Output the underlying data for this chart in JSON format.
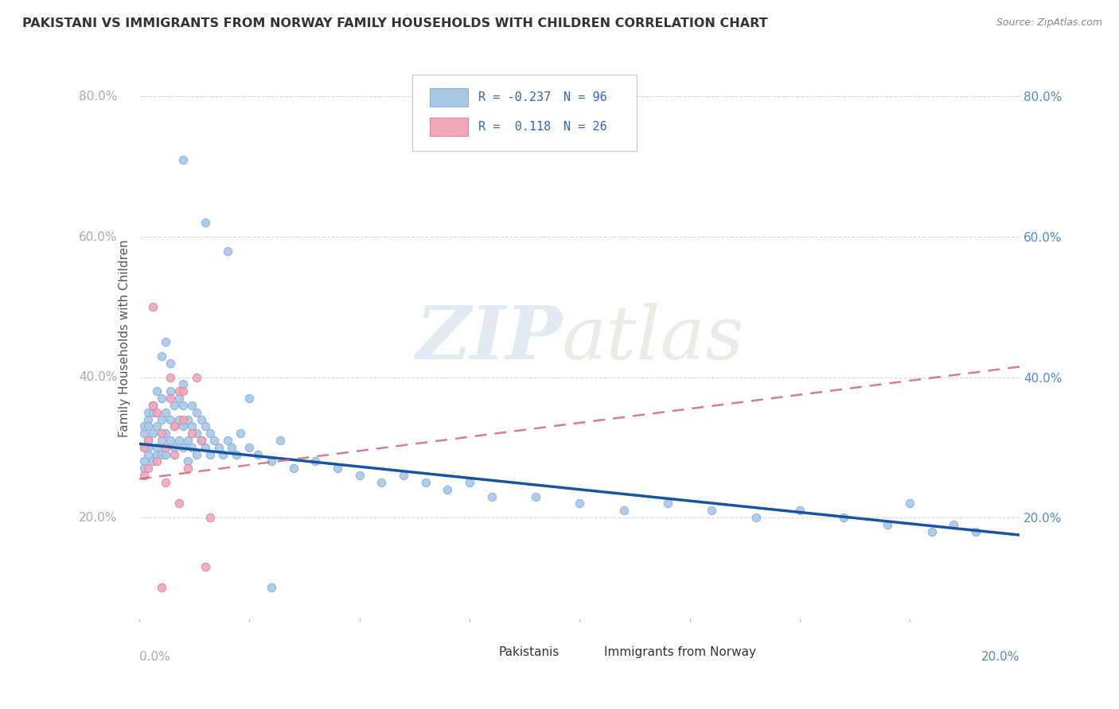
{
  "title": "PAKISTANI VS IMMIGRANTS FROM NORWAY FAMILY HOUSEHOLDS WITH CHILDREN CORRELATION CHART",
  "source": "Source: ZipAtlas.com",
  "ylabel": "Family Households with Children",
  "y_ticks": [
    0.2,
    0.4,
    0.6,
    0.8
  ],
  "y_tick_labels": [
    "20.0%",
    "40.0%",
    "60.0%",
    "80.0%"
  ],
  "x_min": 0.0,
  "x_max": 0.2,
  "y_min": 0.05,
  "y_max": 0.86,
  "r_pakistani": -0.237,
  "n_pakistani": 96,
  "r_norway": 0.118,
  "n_norway": 26,
  "blue_dot_color": "#A8C8E8",
  "pink_dot_color": "#F0A8B8",
  "blue_line_color": "#1855A0",
  "pink_line_color": "#D06878",
  "legend_label_1": "Pakistanis",
  "legend_label_2": "Immigrants from Norway",
  "watermark_zip": "ZIP",
  "watermark_atlas": "atlas",
  "pakistani_x": [
    0.001,
    0.001,
    0.001,
    0.001,
    0.001,
    0.002,
    0.002,
    0.002,
    0.002,
    0.002,
    0.002,
    0.003,
    0.003,
    0.003,
    0.003,
    0.004,
    0.004,
    0.004,
    0.004,
    0.005,
    0.005,
    0.005,
    0.005,
    0.005,
    0.006,
    0.006,
    0.006,
    0.006,
    0.007,
    0.007,
    0.007,
    0.007,
    0.008,
    0.008,
    0.008,
    0.009,
    0.009,
    0.009,
    0.01,
    0.01,
    0.01,
    0.01,
    0.011,
    0.011,
    0.011,
    0.012,
    0.012,
    0.012,
    0.013,
    0.013,
    0.013,
    0.014,
    0.014,
    0.015,
    0.015,
    0.016,
    0.016,
    0.017,
    0.018,
    0.019,
    0.02,
    0.021,
    0.022,
    0.023,
    0.025,
    0.027,
    0.03,
    0.032,
    0.035,
    0.04,
    0.045,
    0.05,
    0.055,
    0.06,
    0.065,
    0.07,
    0.075,
    0.08,
    0.09,
    0.1,
    0.11,
    0.12,
    0.13,
    0.14,
    0.15,
    0.16,
    0.17,
    0.175,
    0.18,
    0.185,
    0.19,
    0.01,
    0.015,
    0.02,
    0.025,
    0.03
  ],
  "pakistani_y": [
    0.3,
    0.32,
    0.28,
    0.33,
    0.27,
    0.31,
    0.34,
    0.29,
    0.35,
    0.3,
    0.33,
    0.32,
    0.35,
    0.28,
    0.36,
    0.3,
    0.33,
    0.38,
    0.29,
    0.31,
    0.34,
    0.37,
    0.29,
    0.43,
    0.32,
    0.35,
    0.29,
    0.45,
    0.31,
    0.34,
    0.38,
    0.42,
    0.3,
    0.33,
    0.36,
    0.31,
    0.34,
    0.37,
    0.3,
    0.33,
    0.36,
    0.39,
    0.31,
    0.34,
    0.28,
    0.3,
    0.33,
    0.36,
    0.29,
    0.32,
    0.35,
    0.31,
    0.34,
    0.3,
    0.33,
    0.29,
    0.32,
    0.31,
    0.3,
    0.29,
    0.31,
    0.3,
    0.29,
    0.32,
    0.3,
    0.29,
    0.28,
    0.31,
    0.27,
    0.28,
    0.27,
    0.26,
    0.25,
    0.26,
    0.25,
    0.24,
    0.25,
    0.23,
    0.23,
    0.22,
    0.21,
    0.22,
    0.21,
    0.2,
    0.21,
    0.2,
    0.19,
    0.22,
    0.18,
    0.19,
    0.18,
    0.71,
    0.62,
    0.58,
    0.37,
    0.1
  ],
  "norway_x": [
    0.001,
    0.001,
    0.002,
    0.002,
    0.003,
    0.003,
    0.004,
    0.004,
    0.005,
    0.005,
    0.006,
    0.006,
    0.007,
    0.007,
    0.008,
    0.008,
    0.009,
    0.009,
    0.01,
    0.01,
    0.011,
    0.012,
    0.013,
    0.014,
    0.015,
    0.016
  ],
  "norway_y": [
    0.3,
    0.26,
    0.31,
    0.27,
    0.5,
    0.36,
    0.35,
    0.28,
    0.32,
    0.1,
    0.3,
    0.25,
    0.37,
    0.4,
    0.33,
    0.29,
    0.38,
    0.22,
    0.34,
    0.38,
    0.27,
    0.32,
    0.4,
    0.31,
    0.13,
    0.2
  ],
  "pak_line_x0": 0.0,
  "pak_line_y0": 0.305,
  "pak_line_x1": 0.2,
  "pak_line_y1": 0.175,
  "nor_line_x0": 0.0,
  "nor_line_y0": 0.255,
  "nor_line_x1": 0.2,
  "nor_line_y1": 0.415
}
